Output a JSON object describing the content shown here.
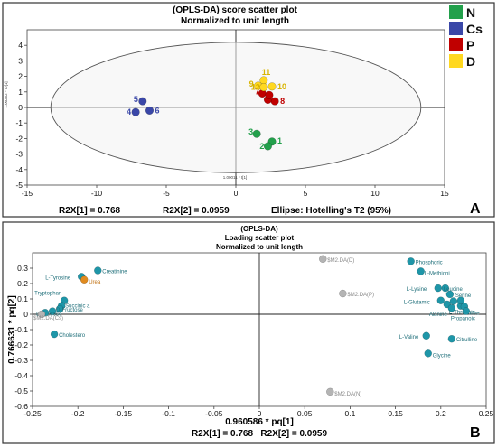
{
  "panel_a": {
    "title": "(OPLS-DA) score scatter plot",
    "subtitle": "Normalized to unit length",
    "xlabel": "1.00011 * t[1]",
    "ylabel": "1.00252 * to[1]",
    "footer_left": "R2X[1] = 0.768",
    "footer_mid": "R2X[2] = 0.0959",
    "footer_right": "Ellipse: Hotelling's T2 (95%)",
    "panel_letter": "A",
    "legend": [
      {
        "label": "N",
        "color": "#22a04b"
      },
      {
        "label": "Cs",
        "color": "#3a47a8"
      },
      {
        "label": "P",
        "color": "#c00000"
      },
      {
        "label": "D",
        "color": "#ffd820"
      }
    ]
  },
  "panel_b": {
    "title": "(OPLS-DA)",
    "subtitle1": "Loading scatter plot",
    "subtitle2": "Normalized to unit length",
    "xlabel": "0.960586 * pq[1]",
    "ylabel": "0.766631 * pq[2]",
    "footer": "R2X[1] = 0.768   R2X[2] = 0.0959",
    "panel_letter": "B"
  },
  "chart_data": [
    {
      "type": "scatter",
      "title": "(OPLS-DA) score scatter plot",
      "subtitle": "Normalized to unit length",
      "xlabel": "1.00011 * t[1]",
      "ylabel": "1.00252 * to[1]",
      "xlim": [
        -15,
        15
      ],
      "ylim": [
        -5,
        5
      ],
      "xticks": [
        -15,
        -10,
        -5,
        0,
        5,
        10,
        15
      ],
      "yticks": [
        -5,
        -4,
        -3,
        -2,
        -1,
        0,
        1,
        2,
        3,
        4
      ],
      "ellipse": {
        "cx": 0,
        "cy": 0,
        "rx": 13.3,
        "ry": 4.2
      },
      "series": [
        {
          "name": "N",
          "color": "#22a04b",
          "points": [
            {
              "label": "1",
              "x": 2.6,
              "y": -2.2
            },
            {
              "label": "2",
              "x": 2.3,
              "y": -2.5
            },
            {
              "label": "3",
              "x": 1.5,
              "y": -1.7
            }
          ]
        },
        {
          "name": "Cs",
          "color": "#3a47a8",
          "points": [
            {
              "label": "4",
              "x": -7.2,
              "y": -0.3
            },
            {
              "label": "5",
              "x": -6.7,
              "y": 0.4
            },
            {
              "label": "6",
              "x": -6.2,
              "y": -0.2
            }
          ]
        },
        {
          "name": "P",
          "color": "#c00000",
          "points": [
            {
              "label": "7",
              "x": 1.9,
              "y": 0.9
            },
            {
              "label": "8",
              "x": 2.8,
              "y": 0.4
            },
            {
              "label": "",
              "x": 2.3,
              "y": 0.5
            },
            {
              "label": "",
              "x": 2.4,
              "y": 0.8
            }
          ]
        },
        {
          "name": "D",
          "color": "#ffd820",
          "points": [
            {
              "label": "9",
              "x": 1.6,
              "y": 1.4
            },
            {
              "label": "10",
              "x": 2.6,
              "y": 1.35
            },
            {
              "label": "11",
              "x": 2.0,
              "y": 1.75
            },
            {
              "label": "12",
              "x": 2.0,
              "y": 1.3
            }
          ]
        }
      ]
    },
    {
      "type": "scatter",
      "title": "(OPLS-DA)",
      "subtitle": "Loading scatter plot / Normalized to unit length",
      "xlabel": "0.960586 * pq[1]",
      "ylabel": "0.766631 * pq[2]",
      "xlim": [
        -0.25,
        0.25
      ],
      "ylim": [
        -0.6,
        0.4
      ],
      "xticks": [
        -0.25,
        -0.2,
        -0.15,
        -0.1,
        -0.05,
        0,
        0.05,
        0.1,
        0.15,
        0.2,
        0.25
      ],
      "yticks": [
        -0.6,
        -0.5,
        -0.4,
        -0.3,
        -0.2,
        -0.1,
        0,
        0.1,
        0.2,
        0.3
      ],
      "points": [
        {
          "label": "Creatinine",
          "x": -0.178,
          "y": 0.285,
          "group": "teal"
        },
        {
          "label": "L-Tyrosine",
          "x": -0.196,
          "y": 0.245,
          "group": "teal"
        },
        {
          "label": "Urea",
          "x": -0.193,
          "y": 0.225,
          "group": "orange"
        },
        {
          "label": "Tryptophan",
          "x": -0.215,
          "y": 0.09,
          "group": "teal"
        },
        {
          "label": "Succinic a",
          "x": -0.218,
          "y": 0.055,
          "group": "teal"
        },
        {
          "label": "D-Fructose",
          "x": -0.22,
          "y": 0.035,
          "group": "teal"
        },
        {
          "label": "D-Glucose",
          "x": -0.228,
          "y": 0.02,
          "group": "teal"
        },
        {
          "label": "",
          "x": -0.236,
          "y": 0.01,
          "group": "teal"
        },
        {
          "label": "$M2.DA(Cs)",
          "x": -0.24,
          "y": 0.0,
          "group": "gray"
        },
        {
          "label": "Cholestero",
          "x": -0.226,
          "y": -0.13,
          "group": "teal"
        },
        {
          "label": "$M2.DA(D)",
          "x": 0.07,
          "y": 0.36,
          "group": "gray"
        },
        {
          "label": "$M2.DA(P)",
          "x": 0.092,
          "y": 0.135,
          "group": "gray"
        },
        {
          "label": "$M2.DA(N)",
          "x": 0.078,
          "y": -0.505,
          "group": "gray"
        },
        {
          "label": "Phosphoric",
          "x": 0.167,
          "y": 0.345,
          "group": "teal"
        },
        {
          "label": "L-Methioni",
          "x": 0.178,
          "y": 0.28,
          "group": "teal"
        },
        {
          "label": "L-Lysine",
          "x": 0.197,
          "y": 0.17,
          "group": "teal"
        },
        {
          "label": "Leucine",
          "x": 0.205,
          "y": 0.17,
          "group": "teal"
        },
        {
          "label": "Serine",
          "x": 0.21,
          "y": 0.13,
          "group": "teal"
        },
        {
          "label": "L-Glutamic",
          "x": 0.2,
          "y": 0.09,
          "group": "teal"
        },
        {
          "label": "",
          "x": 0.207,
          "y": 0.065,
          "group": "teal"
        },
        {
          "label": "",
          "x": 0.214,
          "y": 0.085,
          "group": "teal"
        },
        {
          "label": "Alanine",
          "x": 0.212,
          "y": 0.04,
          "group": "teal"
        },
        {
          "label": "L-Threonin",
          "x": 0.222,
          "y": 0.055,
          "group": "teal"
        },
        {
          "label": "Proline",
          "x": 0.226,
          "y": 0.05,
          "group": "teal"
        },
        {
          "label": "Propanoic",
          "x": 0.228,
          "y": 0.02,
          "group": "teal"
        },
        {
          "label": "",
          "x": 0.222,
          "y": 0.09,
          "group": "teal"
        },
        {
          "label": "L-Valine",
          "x": 0.184,
          "y": -0.14,
          "group": "teal"
        },
        {
          "label": "Citrulline",
          "x": 0.212,
          "y": -0.16,
          "group": "teal"
        },
        {
          "label": "Glycine",
          "x": 0.186,
          "y": -0.255,
          "group": "teal"
        }
      ]
    }
  ]
}
